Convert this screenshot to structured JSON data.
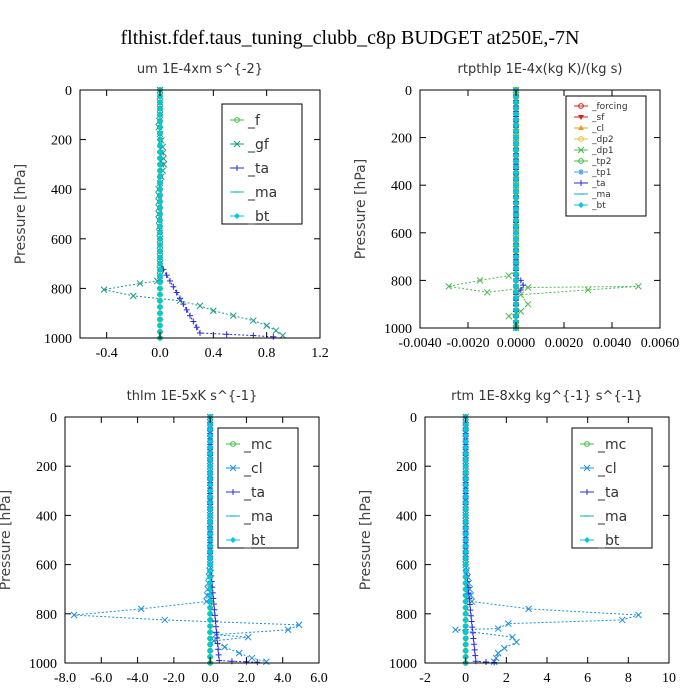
{
  "figure_title": "flthist.fdef.taus_tuning_clubb_c8p  BUDGET at250E,-7N",
  "chart_data": [
    {
      "type": "line",
      "title": "um  1E-4xm s^{-2}",
      "ylabel": "Pressure [hPa]",
      "xlim": [
        -0.6,
        1.2
      ],
      "ylim": [
        1000,
        0
      ],
      "xticks": [
        -0.4,
        0.0,
        0.4,
        0.8,
        1.2
      ],
      "xtick_labels": [
        "-0.4",
        "0.0",
        "0.4",
        "0.8",
        "1.2"
      ],
      "yticks": [
        0,
        200,
        400,
        600,
        800,
        1000
      ],
      "legend_style": "large",
      "series": [
        {
          "name": "_f",
          "color": "#3fbf3f",
          "marker": "o",
          "x": [
            0,
            0,
            0,
            0,
            0,
            0,
            0,
            0,
            0,
            0,
            0,
            0
          ],
          "y": [
            0,
            100,
            200,
            300,
            400,
            500,
            600,
            700,
            800,
            850,
            900,
            1000
          ]
        },
        {
          "name": "_gf",
          "color": "#1a9a8a",
          "marker": "x",
          "x": [
            0,
            0,
            0,
            -0.01,
            0.02,
            0.03,
            -0.01,
            -0.01,
            0,
            0,
            0,
            0,
            -0.02,
            -0.15,
            -0.42,
            -0.2,
            0.15,
            0.3,
            0.4,
            0.55,
            0.7,
            0.8,
            0.87,
            0.92
          ],
          "y": [
            0,
            50,
            100,
            150,
            230,
            300,
            400,
            500,
            600,
            700,
            750,
            760,
            770,
            780,
            805,
            830,
            850,
            870,
            890,
            910,
            930,
            950,
            970,
            990
          ]
        },
        {
          "name": "_ta",
          "color": "#2b2bd6",
          "marker": "+",
          "x": [
            0,
            0,
            0,
            0,
            0,
            0,
            0,
            0,
            0.3,
            0.5,
            0.7,
            0.85
          ],
          "y": [
            0,
            100,
            200,
            300,
            400,
            500,
            600,
            700,
            980,
            985,
            990,
            995
          ]
        },
        {
          "name": "_ma",
          "color": "#17b2c2",
          "marker": "-",
          "x": [
            0,
            0,
            0,
            0,
            0,
            0,
            0,
            0,
            0,
            0,
            0,
            0
          ],
          "y": [
            0,
            100,
            200,
            300,
            400,
            500,
            600,
            700,
            800,
            850,
            900,
            1000
          ]
        },
        {
          "name": "_bt",
          "color": "#00c8e0",
          "marker": "d",
          "x": [
            0,
            0,
            0,
            0,
            0,
            0,
            0,
            0,
            0,
            0,
            0,
            0
          ],
          "y": [
            0,
            100,
            200,
            300,
            400,
            500,
            600,
            700,
            800,
            850,
            900,
            1000
          ]
        }
      ]
    },
    {
      "type": "line",
      "title": "rtpthlp  1E-4x(kg K)/(kg s)",
      "ylabel": "Pressure [hPa]",
      "xlim": [
        -0.004,
        0.006
      ],
      "ylim": [
        1000,
        0
      ],
      "xticks": [
        -0.004,
        -0.002,
        0.0,
        0.002,
        0.004,
        0.006
      ],
      "xtick_labels": [
        "-0.0040",
        "-0.0020",
        "0.0000",
        "0.0020",
        "0.0040",
        "0.0060"
      ],
      "yticks": [
        0,
        200,
        400,
        600,
        800,
        1000
      ],
      "legend_style": "small",
      "series": [
        {
          "name": "_forcing",
          "color": "#d42020",
          "marker": "o",
          "x": [
            0,
            0,
            0,
            0,
            0,
            0,
            0,
            0,
            0,
            0,
            0
          ],
          "y": [
            0,
            100,
            200,
            300,
            400,
            500,
            600,
            700,
            800,
            900,
            1000
          ]
        },
        {
          "name": "_sf",
          "color": "#d42020",
          "marker": "v",
          "x": [
            0,
            0,
            0,
            0,
            0,
            0,
            0,
            0,
            0,
            0,
            0
          ],
          "y": [
            0,
            100,
            200,
            300,
            400,
            500,
            600,
            700,
            800,
            900,
            1000
          ]
        },
        {
          "name": "_cl",
          "color": "#e0a020",
          "marker": "^",
          "x": [
            0,
            0,
            0,
            0,
            0,
            0,
            0,
            0,
            0,
            0,
            0
          ],
          "y": [
            0,
            100,
            200,
            300,
            400,
            500,
            600,
            700,
            800,
            900,
            1000
          ]
        },
        {
          "name": "_dp2",
          "color": "#e0c040",
          "marker": "o",
          "x": [
            0,
            0,
            0,
            0,
            0,
            0,
            0,
            0,
            0,
            0,
            0
          ],
          "y": [
            0,
            100,
            200,
            300,
            400,
            500,
            600,
            700,
            800,
            900,
            1000
          ]
        },
        {
          "name": "_dp1",
          "color": "#4db84d",
          "marker": "x",
          "x": [
            0,
            0,
            0,
            0,
            0,
            -0.0003,
            -0.0015,
            -0.0028,
            -0.0012,
            0.0005,
            0.0051,
            0.003,
            0.0002,
            0.0005,
            0.0002,
            -0.0003,
            0,
            0
          ],
          "y": [
            0,
            200,
            400,
            600,
            760,
            780,
            800,
            825,
            850,
            830,
            825,
            840,
            860,
            900,
            930,
            950,
            980,
            1000
          ]
        },
        {
          "name": "_tp2",
          "color": "#3fbf3f",
          "marker": "o",
          "x": [
            0,
            0,
            0,
            0,
            0,
            0,
            0,
            0,
            0,
            0,
            0
          ],
          "y": [
            0,
            100,
            200,
            300,
            400,
            500,
            600,
            700,
            800,
            900,
            1000
          ]
        },
        {
          "name": "_tp1",
          "color": "#4aa0e0",
          "marker": "*",
          "x": [
            0,
            0,
            0,
            0,
            0,
            0,
            0,
            0,
            0,
            0,
            0
          ],
          "y": [
            0,
            100,
            200,
            300,
            400,
            500,
            600,
            700,
            800,
            900,
            1000
          ]
        },
        {
          "name": "_ta",
          "color": "#2b2bd6",
          "marker": "+",
          "x": [
            0,
            0,
            0.0002,
            0.0003,
            0.0002,
            0,
            0
          ],
          "y": [
            0,
            780,
            800,
            820,
            840,
            860,
            1000
          ]
        },
        {
          "name": "_ma",
          "color": "#17b2c2",
          "marker": "-",
          "x": [
            0,
            0,
            0,
            0,
            0,
            0,
            0,
            0,
            0,
            0,
            0
          ],
          "y": [
            0,
            100,
            200,
            300,
            400,
            500,
            600,
            700,
            800,
            900,
            1000
          ]
        },
        {
          "name": "_bt",
          "color": "#00c8e0",
          "marker": "d",
          "x": [
            0,
            0,
            0,
            0,
            0,
            0,
            0,
            0,
            0,
            0,
            0
          ],
          "y": [
            0,
            100,
            200,
            300,
            400,
            500,
            600,
            700,
            800,
            900,
            1000
          ]
        }
      ]
    },
    {
      "type": "line",
      "title": "thlm  1E-5xK s^{-1}",
      "ylabel": "Pressure [hPa]",
      "xlim": [
        -8.0,
        6.0
      ],
      "ylim": [
        1000,
        0
      ],
      "xticks": [
        -8.0,
        -6.0,
        -4.0,
        -2.0,
        0.0,
        2.0,
        4.0,
        6.0
      ],
      "xtick_labels": [
        "-8.0",
        "-6.0",
        "-4.0",
        "-2.0",
        "0.0",
        "2.0",
        "4.0",
        "6.0"
      ],
      "yticks": [
        0,
        200,
        400,
        600,
        800,
        1000
      ],
      "legend_style": "large",
      "series": [
        {
          "name": "_mc",
          "color": "#3fbf3f",
          "marker": "o",
          "x": [
            0,
            0,
            0,
            0,
            0,
            0,
            0,
            0,
            0,
            0,
            0,
            0
          ],
          "y": [
            0,
            100,
            200,
            300,
            400,
            500,
            600,
            700,
            800,
            850,
            900,
            1000
          ]
        },
        {
          "name": "_cl",
          "color": "#1e8fe0",
          "marker": "x",
          "x": [
            0,
            0,
            0,
            0,
            -0.2,
            -3.8,
            -7.5,
            -2.5,
            4.9,
            4.3,
            0.3,
            2.1,
            0.2,
            0.8,
            1.6,
            2.3,
            3.1
          ],
          "y": [
            0,
            200,
            400,
            600,
            750,
            780,
            805,
            825,
            845,
            865,
            885,
            895,
            910,
            935,
            960,
            980,
            995
          ]
        },
        {
          "name": "_ta",
          "color": "#2b2bd6",
          "marker": "+",
          "x": [
            0,
            0,
            0,
            0,
            0.5,
            1.2,
            2.0,
            2.6
          ],
          "y": [
            0,
            200,
            400,
            600,
            990,
            993,
            995,
            997
          ]
        },
        {
          "name": "_ma",
          "color": "#17b2c2",
          "marker": "-",
          "x": [
            0,
            0,
            0,
            0,
            0,
            0,
            0,
            0,
            0,
            0,
            0,
            0
          ],
          "y": [
            0,
            100,
            200,
            300,
            400,
            500,
            600,
            700,
            800,
            850,
            900,
            1000
          ]
        },
        {
          "name": "_bt",
          "color": "#00c8e0",
          "marker": "d",
          "x": [
            0,
            0,
            0,
            0,
            0,
            0,
            0,
            0,
            0,
            0,
            0,
            0
          ],
          "y": [
            0,
            100,
            200,
            300,
            400,
            500,
            600,
            700,
            800,
            850,
            900,
            1000
          ]
        }
      ]
    },
    {
      "type": "line",
      "title": "rtm  1E-8xkg kg^{-1} s^{-1}",
      "ylabel": "Pressure [hPa]",
      "xlim": [
        -2,
        10
      ],
      "ylim": [
        1000,
        0
      ],
      "xticks": [
        -2,
        0,
        2,
        4,
        6,
        8,
        10
      ],
      "xtick_labels": [
        "-2",
        "0",
        "2",
        "4",
        "6",
        "8",
        "10"
      ],
      "yticks": [
        0,
        200,
        400,
        600,
        800,
        1000
      ],
      "legend_style": "large",
      "series": [
        {
          "name": "_mc",
          "color": "#3fbf3f",
          "marker": "o",
          "x": [
            0,
            0,
            0,
            0,
            0,
            0,
            0,
            0,
            0,
            0,
            0,
            0
          ],
          "y": [
            0,
            100,
            200,
            300,
            400,
            500,
            600,
            700,
            800,
            850,
            900,
            1000
          ]
        },
        {
          "name": "_cl",
          "color": "#1e8fe0",
          "marker": "x",
          "x": [
            0,
            0,
            0,
            0,
            0.3,
            3.1,
            8.5,
            7.7,
            2.1,
            1.6,
            -0.5,
            2.3,
            2.5,
            1.9,
            1.6,
            1.5,
            1.4
          ],
          "y": [
            0,
            200,
            400,
            600,
            750,
            780,
            805,
            825,
            840,
            860,
            865,
            895,
            915,
            940,
            960,
            980,
            995
          ]
        },
        {
          "name": "_ta",
          "color": "#2b2bd6",
          "marker": "+",
          "x": [
            0,
            0,
            0,
            0,
            0.5,
            1.0,
            1.4
          ],
          "y": [
            0,
            200,
            400,
            600,
            993,
            996,
            998
          ]
        },
        {
          "name": "_ma",
          "color": "#17b2c2",
          "marker": "-",
          "x": [
            0,
            0,
            0,
            0,
            0,
            0,
            0,
            0,
            0,
            0,
            0,
            0
          ],
          "y": [
            0,
            100,
            200,
            300,
            400,
            500,
            600,
            700,
            800,
            850,
            900,
            1000
          ]
        },
        {
          "name": "_bt",
          "color": "#00c8e0",
          "marker": "d",
          "x": [
            0,
            0,
            0,
            0,
            0,
            0,
            0,
            0,
            0,
            0,
            0,
            0
          ],
          "y": [
            0,
            100,
            200,
            300,
            400,
            500,
            600,
            700,
            800,
            850,
            900,
            1000
          ]
        }
      ]
    }
  ]
}
